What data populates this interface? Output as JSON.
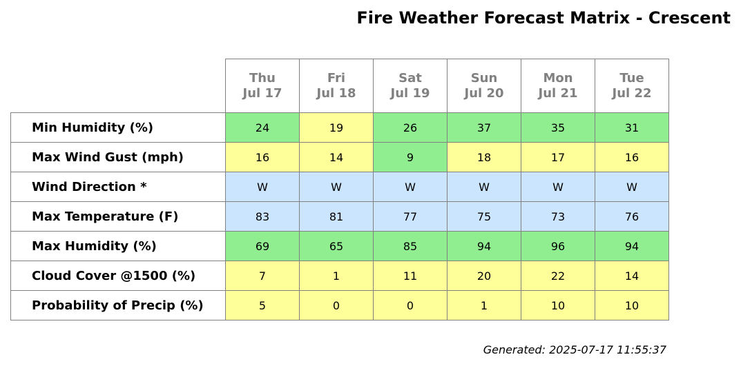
{
  "title": "Fire Weather Forecast Matrix - Crescent",
  "footer": "Generated: 2025-07-17 11:55:37",
  "colors": {
    "green": "#90ee90",
    "yellow": "#ffff99",
    "blue": "#cce5ff",
    "border": "#808080",
    "header_text": "#808080"
  },
  "chart_data": {
    "type": "table",
    "columns": [
      {
        "day": "Thu",
        "date": "Jul 17"
      },
      {
        "day": "Fri",
        "date": "Jul 18"
      },
      {
        "day": "Sat",
        "date": "Jul 19"
      },
      {
        "day": "Sun",
        "date": "Jul 20"
      },
      {
        "day": "Mon",
        "date": "Jul 21"
      },
      {
        "day": "Tue",
        "date": "Jul 22"
      }
    ],
    "rows": [
      {
        "label": "Min Humidity (%)",
        "values": [
          "24",
          "19",
          "26",
          "37",
          "35",
          "31"
        ],
        "colors": [
          "green",
          "yellow",
          "green",
          "green",
          "green",
          "green"
        ]
      },
      {
        "label": "Max Wind Gust (mph)",
        "values": [
          "16",
          "14",
          "9",
          "18",
          "17",
          "16"
        ],
        "colors": [
          "yellow",
          "yellow",
          "green",
          "yellow",
          "yellow",
          "yellow"
        ]
      },
      {
        "label": "Wind Direction *",
        "values": [
          "W",
          "W",
          "W",
          "W",
          "W",
          "W"
        ],
        "colors": [
          "blue",
          "blue",
          "blue",
          "blue",
          "blue",
          "blue"
        ]
      },
      {
        "label": "Max Temperature (F)",
        "values": [
          "83",
          "81",
          "77",
          "75",
          "73",
          "76"
        ],
        "colors": [
          "blue",
          "blue",
          "blue",
          "blue",
          "blue",
          "blue"
        ]
      },
      {
        "label": "Max Humidity (%)",
        "values": [
          "69",
          "65",
          "85",
          "94",
          "96",
          "94"
        ],
        "colors": [
          "green",
          "green",
          "green",
          "green",
          "green",
          "green"
        ]
      },
      {
        "label": "Cloud Cover @1500 (%)",
        "values": [
          "7",
          "1",
          "11",
          "20",
          "22",
          "14"
        ],
        "colors": [
          "yellow",
          "yellow",
          "yellow",
          "yellow",
          "yellow",
          "yellow"
        ]
      },
      {
        "label": "Probability of Precip (%)",
        "values": [
          "5",
          "0",
          "0",
          "1",
          "10",
          "10"
        ],
        "colors": [
          "yellow",
          "yellow",
          "yellow",
          "yellow",
          "yellow",
          "yellow"
        ]
      }
    ]
  }
}
